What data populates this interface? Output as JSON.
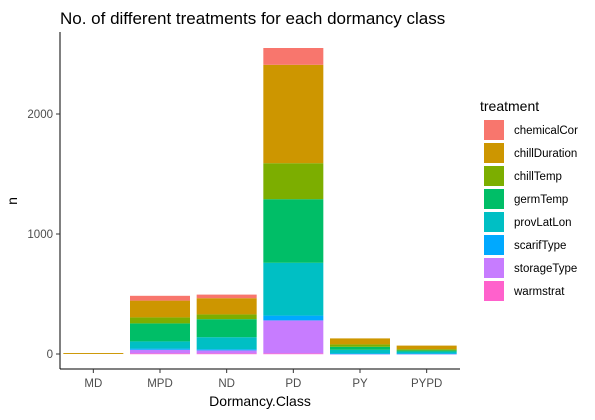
{
  "chart_data": {
    "type": "bar",
    "stacked": true,
    "title": "No. of different treatments for each dormancy class",
    "xlabel": "Dormancy.Class",
    "ylabel": "n",
    "ylim": [
      0,
      2600
    ],
    "yticks": [
      0,
      1000,
      2000
    ],
    "ytick_labels": [
      "0",
      "1000",
      "2000"
    ],
    "grid": false,
    "legend_title": "treatment",
    "legend_position": "right",
    "categories": [
      "MD",
      "MPD",
      "ND",
      "PD",
      "PY",
      "PYPD"
    ],
    "series": [
      {
        "name": "chemicalCor",
        "color": "#F8766D",
        "values": [
          0,
          40,
          30,
          140,
          0,
          0
        ]
      },
      {
        "name": "chillDuration",
        "color": "#CD9600",
        "values": [
          8,
          140,
          135,
          820,
          50,
          30
        ]
      },
      {
        "name": "chillTemp",
        "color": "#7CAE00",
        "values": [
          0,
          50,
          40,
          300,
          20,
          10
        ]
      },
      {
        "name": "germTemp",
        "color": "#00BE67",
        "values": [
          0,
          150,
          150,
          530,
          25,
          10
        ]
      },
      {
        "name": "provLatLon",
        "color": "#00BFC4",
        "values": [
          0,
          60,
          100,
          440,
          30,
          15
        ]
      },
      {
        "name": "scarifType",
        "color": "#00A9FF",
        "values": [
          0,
          10,
          10,
          40,
          2,
          2
        ]
      },
      {
        "name": "storageType",
        "color": "#C77CFF",
        "values": [
          0,
          30,
          25,
          275,
          3,
          3
        ]
      },
      {
        "name": "warmstrat",
        "color": "#FF61CC",
        "values": [
          0,
          5,
          5,
          5,
          0,
          0
        ]
      }
    ]
  }
}
